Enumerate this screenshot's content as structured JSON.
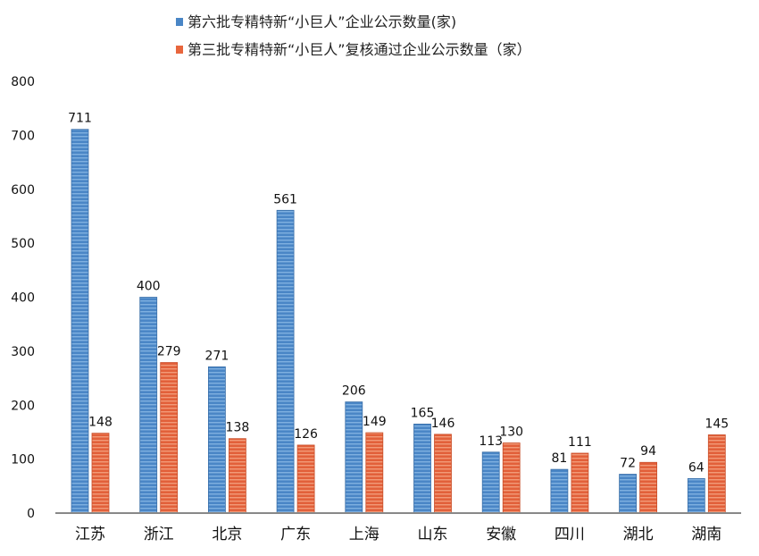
{
  "chart_data": {
    "type": "bar",
    "categories": [
      "江苏",
      "浙江",
      "北京",
      "广东",
      "上海",
      "山东",
      "安徽",
      "四川",
      "湖北",
      "湖南"
    ],
    "series": [
      {
        "name": "第六批专精特新“小巨人”企业公示数量(家)",
        "color": "#4a86c6",
        "values": [
          711,
          400,
          271,
          561,
          206,
          165,
          113,
          81,
          72,
          64
        ]
      },
      {
        "name": "第三批专精特新“小巨人”复核通过企业公示数量（家）",
        "color": "#e8663d",
        "values": [
          148,
          279,
          138,
          126,
          149,
          146,
          130,
          111,
          94,
          145
        ]
      }
    ],
    "yticks": [
      0,
      100,
      200,
      300,
      400,
      500,
      600,
      700,
      800
    ],
    "ylim": [
      0,
      800
    ],
    "grid": false,
    "legend_position": "top"
  }
}
